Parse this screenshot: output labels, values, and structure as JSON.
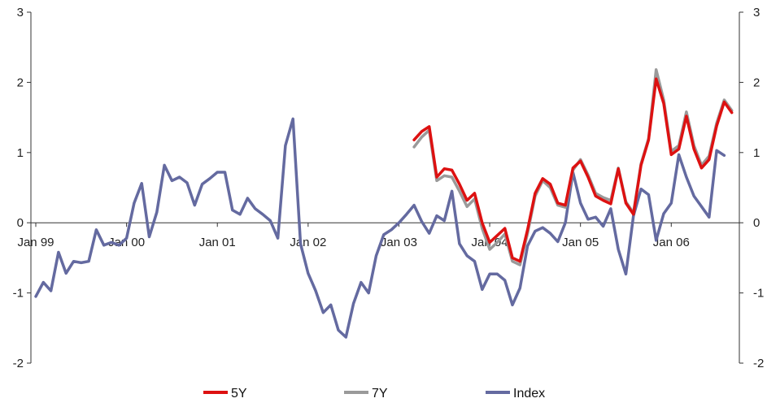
{
  "chart_data": {
    "type": "line",
    "title": "",
    "xlabel": "",
    "ylabel": "",
    "ylim": [
      -2,
      3
    ],
    "y_ticks": [
      -2,
      -1,
      0,
      1,
      2,
      3
    ],
    "y_tick_labels": [
      "-2",
      "-1",
      "0",
      "1",
      "2",
      "3"
    ],
    "right_y_tick_labels": [
      "-2",
      "-1",
      "0",
      "1",
      "2",
      "3"
    ],
    "x_tick_labels": [
      {
        "label": "Jan 99",
        "x": 0
      },
      {
        "label": "Jan 00",
        "x": 12
      },
      {
        "label": "Jan 01",
        "x": 24
      },
      {
        "label": "Jan 02",
        "x": 36
      },
      {
        "label": "Jan 03",
        "x": 48
      },
      {
        "label": "Jan 04",
        "x": 60
      },
      {
        "label": "Jan 05",
        "x": 72
      },
      {
        "label": "Jan 06",
        "x": 84
      }
    ],
    "x_unit": "month index (0 = Jan 99)",
    "xlim": [
      0,
      93
    ],
    "legend_position": "bottom",
    "grid": false,
    "series": [
      {
        "name": "5Y",
        "color": "#dd1111",
        "x_start": 50,
        "values": [
          1.18,
          1.3,
          1.37,
          0.65,
          0.77,
          0.75,
          0.55,
          0.32,
          0.42,
          0.0,
          -0.28,
          -0.18,
          -0.08,
          -0.5,
          -0.55,
          -0.1,
          0.42,
          0.63,
          0.55,
          0.28,
          0.25,
          0.78,
          0.88,
          0.65,
          0.38,
          0.32,
          0.27,
          0.77,
          0.28,
          0.12,
          0.82,
          1.18,
          2.05,
          1.7,
          0.97,
          1.05,
          1.52,
          1.05,
          0.78,
          0.9,
          1.38,
          1.72,
          1.57
        ]
      },
      {
        "name": "7Y",
        "color": "#9a9a9a",
        "x_start": 50,
        "values": [
          1.08,
          1.22,
          1.32,
          0.6,
          0.67,
          0.65,
          0.45,
          0.23,
          0.34,
          -0.08,
          -0.38,
          -0.28,
          -0.16,
          -0.55,
          -0.6,
          -0.15,
          0.38,
          0.6,
          0.5,
          0.25,
          0.22,
          0.75,
          0.9,
          0.68,
          0.42,
          0.36,
          0.32,
          0.78,
          0.3,
          0.14,
          0.84,
          1.2,
          2.18,
          1.75,
          1.02,
          1.1,
          1.58,
          1.1,
          0.82,
          0.95,
          1.42,
          1.75,
          1.6
        ]
      },
      {
        "name": "Index",
        "color": "#646aa0",
        "x_start": 0,
        "values": [
          -1.05,
          -0.85,
          -0.97,
          -0.42,
          -0.72,
          -0.55,
          -0.57,
          -0.55,
          -0.1,
          -0.32,
          -0.28,
          -0.32,
          -0.22,
          0.28,
          0.56,
          -0.2,
          0.15,
          0.82,
          0.6,
          0.65,
          0.57,
          0.25,
          0.55,
          0.63,
          0.72,
          0.72,
          0.18,
          0.12,
          0.35,
          0.2,
          0.12,
          0.03,
          -0.22,
          1.1,
          1.48,
          -0.3,
          -0.72,
          -0.97,
          -1.28,
          -1.17,
          -1.53,
          -1.63,
          -1.15,
          -0.85,
          -1.0,
          -0.47,
          -0.17,
          -0.1,
          0.0,
          0.12,
          0.25,
          0.02,
          -0.15,
          0.1,
          0.03,
          0.45,
          -0.3,
          -0.47,
          -0.55,
          -0.95,
          -0.73,
          -0.73,
          -0.82,
          -1.17,
          -0.93,
          -0.33,
          -0.12,
          -0.07,
          -0.15,
          -0.27,
          0.0,
          0.72,
          0.28,
          0.05,
          0.08,
          -0.05,
          0.2,
          -0.38,
          -0.73,
          0.1,
          0.48,
          0.4,
          -0.25,
          0.13,
          0.28,
          0.97,
          0.65,
          0.38,
          0.23,
          0.08,
          1.03,
          0.96
        ]
      }
    ]
  }
}
